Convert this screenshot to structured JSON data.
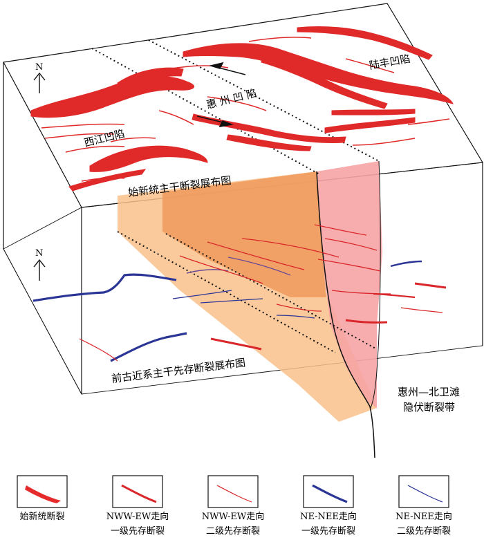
{
  "diagram": {
    "top_map_title": "始新统主干断裂展布图",
    "bottom_map_title": "前古近系主干先存断裂展布图",
    "north_label_top": "N",
    "north_label_bottom": "N",
    "depressions": {
      "xijiang": "西江凹陷",
      "huizhou": "惠 州 凹 陷",
      "lufeng": "陆丰凹陷"
    },
    "fault_zone_label_line1": "惠州—北卫滩",
    "fault_zone_label_line2": "隐伏断裂带"
  },
  "legend": {
    "items": [
      {
        "label_line1": "始新统断裂",
        "label_line2": "",
        "icon": "red-filled-fault-swatch",
        "color": "#e52b2b"
      },
      {
        "label_line1": "NWW-EW走向",
        "label_line2": "一级先存断裂",
        "icon": "thick-red-line-swatch",
        "color": "#d9262a"
      },
      {
        "label_line1": "NWW-EW走向",
        "label_line2": "二级先存断裂",
        "icon": "thin-red-line-swatch",
        "color": "#d9262a"
      },
      {
        "label_line1": "NE-NEE走向",
        "label_line2": "一级先存断裂",
        "icon": "thick-blue-line-swatch",
        "color": "#2b3595"
      },
      {
        "label_line1": "NE-NEE走向",
        "label_line2": "二级先存断裂",
        "icon": "thin-blue-line-swatch",
        "color": "#2b3595"
      }
    ]
  },
  "colors": {
    "fault_red": "#e02a2a",
    "preexisting_blue": "#2b3595",
    "orange_plane": "#f7b478",
    "pink_plane": "#f6a3a3"
  }
}
